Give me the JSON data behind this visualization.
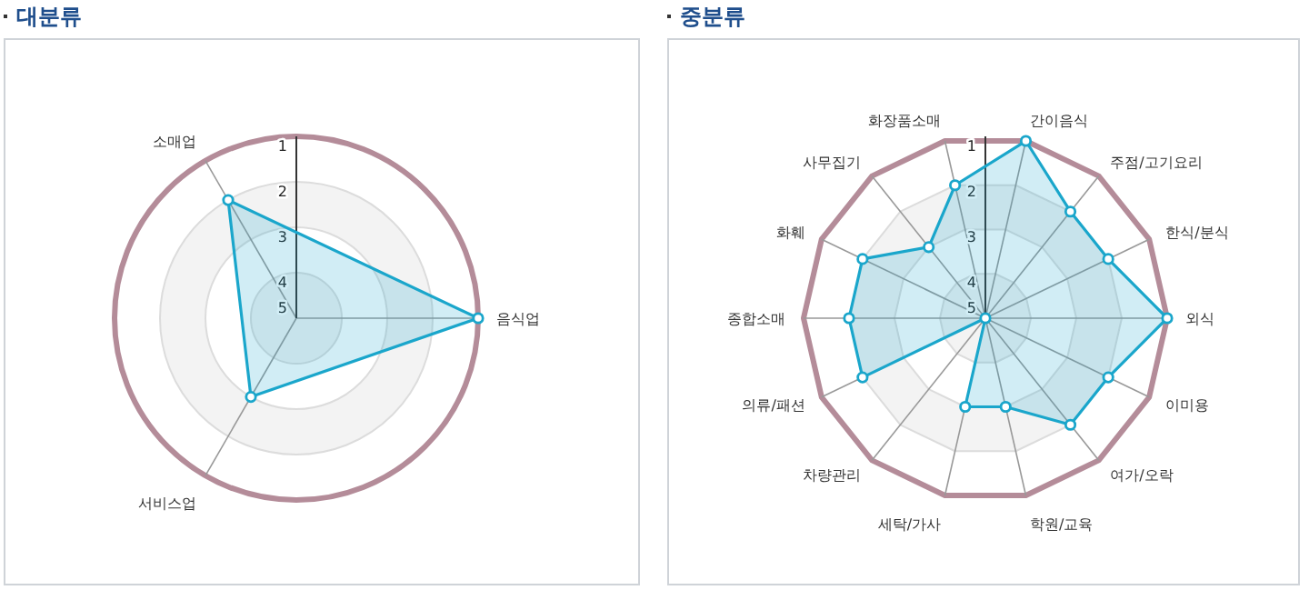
{
  "chart_data": [
    {
      "type": "radar",
      "title": "대분류",
      "categories": [
        "음식업",
        "서비스업",
        "소매업"
      ],
      "series": [
        {
          "color": "#1aa6cb",
          "values": [
            1,
            3,
            2
          ]
        }
      ],
      "ylim": [
        5,
        1
      ],
      "yticks": [
        1,
        2,
        3,
        4,
        5
      ],
      "grid": true,
      "marker": "circle"
    },
    {
      "type": "radar",
      "title": "중분류",
      "categories": [
        "간이음식",
        "주점/고기요리",
        "한식/분식",
        "외식",
        "이미용",
        "여가/오락",
        "학원/교육",
        "세탁/가사",
        "차량관리",
        "의류/패션",
        "종합소매",
        "화훼",
        "사무집기",
        "화장품소매"
      ],
      "series": [
        {
          "color": "#1aa6cb",
          "values": [
            1,
            2,
            2,
            1,
            2,
            2,
            3,
            3,
            5,
            2,
            2,
            2,
            3,
            2
          ]
        }
      ],
      "ylim": [
        5,
        1
      ],
      "yticks": [
        1,
        2,
        3,
        4,
        5
      ],
      "grid": true,
      "marker": "circle"
    }
  ]
}
